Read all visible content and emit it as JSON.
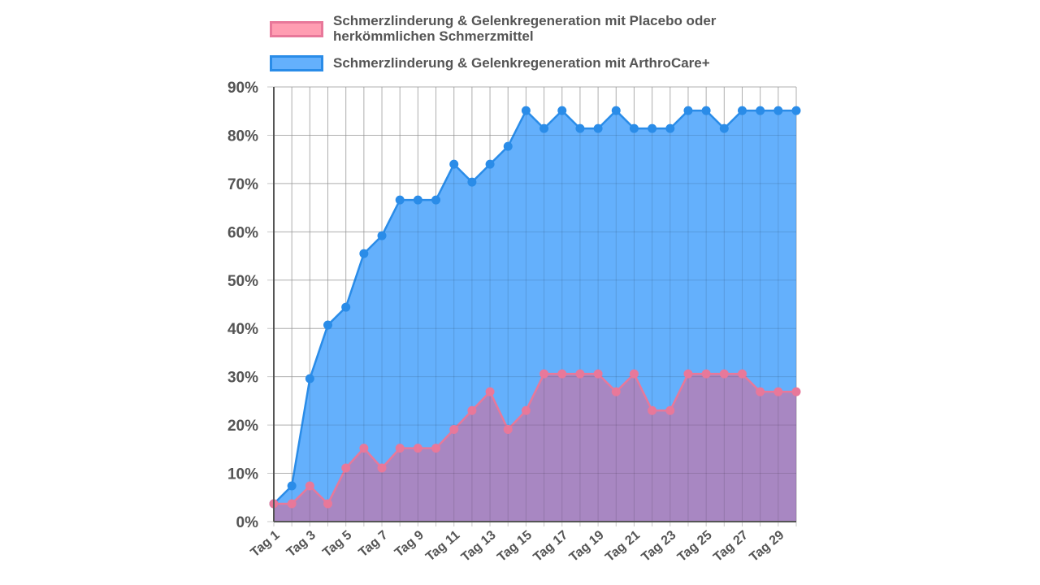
{
  "chart_data": {
    "type": "area",
    "title": "",
    "xlabel": "",
    "ylabel": "",
    "ylim": [
      0,
      90
    ],
    "yticks": [
      "0%",
      "10%",
      "20%",
      "30%",
      "40%",
      "50%",
      "60%",
      "70%",
      "80%",
      "90%"
    ],
    "categories": [
      "Tag 1",
      "Tag 2",
      "Tag 3",
      "Tag 4",
      "Tag 5",
      "Tag 6",
      "Tag 7",
      "Tag 8",
      "Tag 9",
      "Tag 10",
      "Tag 11",
      "Tag 12",
      "Tag 13",
      "Tag 14",
      "Tag 15",
      "Tag 16",
      "Tag 17",
      "Tag 18",
      "Tag 19",
      "Tag 20",
      "Tag 21",
      "Tag 22",
      "Tag 23",
      "Tag 24",
      "Tag 25",
      "Tag 26",
      "Tag 27",
      "Tag 28",
      "Tag 29",
      "Tag 30"
    ],
    "xtick_labels_shown": [
      "Tag 1",
      "Tag 3",
      "Tag 5",
      "Tag 7",
      "Tag 9",
      "Tag 11",
      "Tag 13",
      "Tag 15",
      "Tag 17",
      "Tag 19",
      "Tag 21",
      "Tag 23",
      "Tag 25",
      "Tag 27",
      "Tag 29"
    ],
    "grid": true,
    "legend_position": "top",
    "series": [
      {
        "name": "Schmerzlinderung & Gelenkregeneration mit Placebo oder herkömmlichen Schmerzmittel",
        "color": "#e8789a",
        "fill": "#a887c2",
        "values": [
          3.7,
          3.7,
          7.4,
          3.7,
          11.1,
          15.2,
          11.1,
          15.2,
          15.2,
          15.2,
          19.1,
          23.0,
          26.9,
          19.1,
          23.0,
          30.6,
          30.6,
          30.6,
          30.6,
          26.9,
          30.6,
          23.0,
          23.0,
          30.6,
          30.6,
          30.6,
          30.6,
          26.9,
          26.9,
          26.9
        ]
      },
      {
        "name": "Schmerzlinderung & Gelenkregeneration mit ArthroCare+",
        "color": "#2a8ce8",
        "fill": "#64b0fc",
        "values": [
          3.7,
          7.4,
          29.6,
          40.7,
          44.4,
          55.5,
          59.2,
          66.6,
          66.6,
          66.6,
          74.0,
          70.3,
          74.0,
          77.7,
          85.1,
          81.4,
          85.1,
          81.4,
          81.4,
          85.1,
          81.4,
          81.4,
          81.4,
          85.1,
          85.1,
          81.4,
          85.1,
          85.1,
          85.1,
          85.1
        ]
      }
    ]
  }
}
